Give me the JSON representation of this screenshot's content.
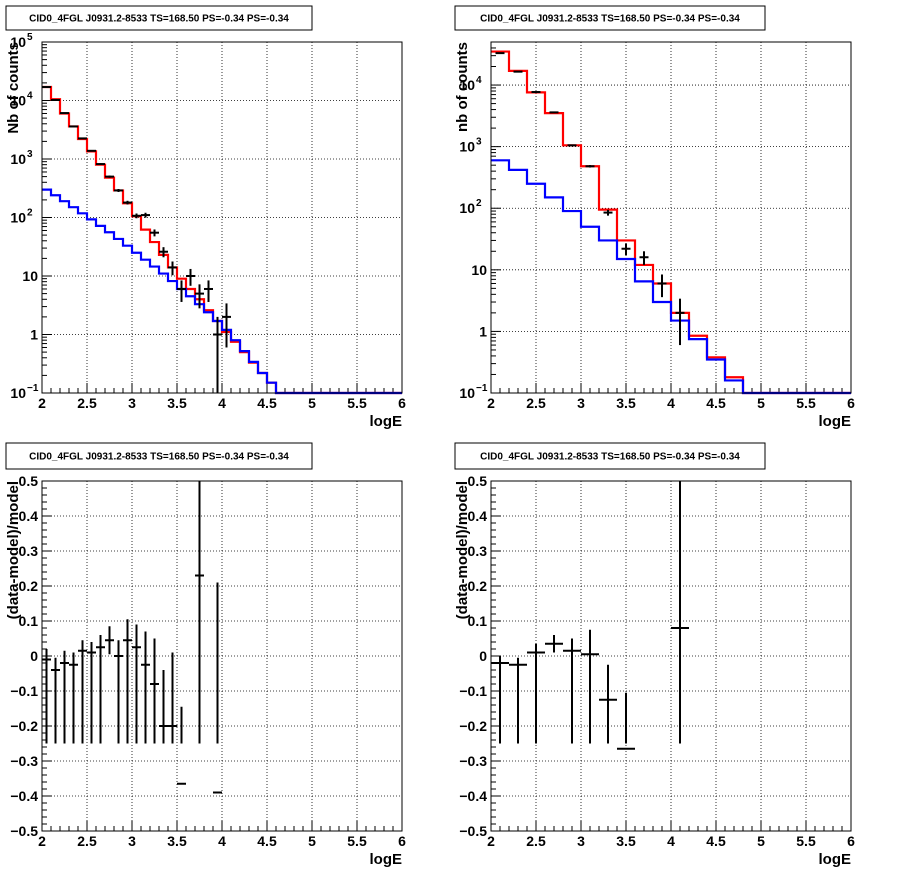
{
  "chart_data": [
    {
      "id": "p1",
      "type": "histogram",
      "title": "CID0_4FGL J0931.2-8533 TS=168.50 PS=-0.34 PS=-0.34",
      "xlabel": "logE",
      "ylabel": "Nb of counts",
      "xlim": [
        2,
        6
      ],
      "ylim": [
        0.1,
        100000
      ],
      "yscale": "log",
      "grid": true,
      "x_ticks": [
        "2",
        "2.5",
        "3",
        "3.5",
        "4",
        "4.5",
        "5",
        "5.5",
        "6"
      ],
      "y_ticks": [
        {
          "value": 0.1,
          "base": "10",
          "exp": "−1"
        },
        {
          "value": 1,
          "label": "1"
        },
        {
          "value": 10,
          "label": "10"
        },
        {
          "value": 100,
          "base": "10",
          "exp": "2"
        },
        {
          "value": 1000,
          "base": "10",
          "exp": "3"
        },
        {
          "value": 10000,
          "base": "10",
          "exp": "4"
        },
        {
          "value": 100000,
          "base": "10",
          "exp": "5"
        }
      ],
      "bin_edges": [
        2.0,
        2.1,
        2.2,
        2.3,
        2.4,
        2.5,
        2.6,
        2.7,
        2.8,
        2.9,
        3.0,
        3.1,
        3.2,
        3.3,
        3.4,
        3.5,
        3.6,
        3.7,
        3.8,
        3.9,
        4.0,
        4.1,
        4.2,
        4.3,
        4.4,
        4.5,
        4.6,
        4.7,
        4.8,
        4.9,
        5.0,
        5.1,
        5.2,
        5.3,
        5.4,
        5.5,
        5.6,
        5.7,
        5.8,
        5.9,
        6.0
      ],
      "series": [
        {
          "color": "#ff0000",
          "values": [
            17000,
            10500,
            6000,
            3600,
            2200,
            1350,
            800,
            480,
            290,
            175,
            105,
            62,
            38,
            23,
            14,
            9,
            6,
            4,
            2.6,
            1.7,
            1.1,
            0.75,
            0.5,
            0.33,
            0.22,
            0.15,
            0.1,
            0.1,
            0.1,
            0.1,
            0.1,
            0.1,
            0.1,
            0.1,
            0.1,
            0.1,
            0.1,
            0.1,
            0.1,
            0.1
          ]
        },
        {
          "color": "#0000ff",
          "values": [
            300,
            240,
            190,
            150,
            118,
            93,
            72,
            56,
            43,
            33,
            25,
            19,
            14.5,
            11,
            8.2,
            6,
            4.5,
            3.3,
            2.4,
            1.7,
            1.2,
            0.8,
            0.52,
            0.34,
            0.22,
            0.15,
            0.1,
            0.1,
            0.1,
            0.1,
            0.1,
            0.1,
            0.1,
            0.1,
            0.1,
            0.1,
            0.1,
            0.1,
            0.1,
            0.1
          ]
        }
      ],
      "points": [
        {
          "x": 2.05,
          "y": 17000,
          "err": 130
        },
        {
          "x": 2.15,
          "y": 10200,
          "err": 100
        },
        {
          "x": 2.25,
          "y": 6100,
          "err": 78
        },
        {
          "x": 2.35,
          "y": 3600,
          "err": 60
        },
        {
          "x": 2.45,
          "y": 2250,
          "err": 47
        },
        {
          "x": 2.55,
          "y": 1380,
          "err": 37
        },
        {
          "x": 2.65,
          "y": 820,
          "err": 29
        },
        {
          "x": 2.75,
          "y": 500,
          "err": 22
        },
        {
          "x": 2.85,
          "y": 290,
          "err": 17
        },
        {
          "x": 2.95,
          "y": 180,
          "err": 13
        },
        {
          "x": 3.05,
          "y": 107,
          "err": 10
        },
        {
          "x": 3.15,
          "y": 110,
          "err": 10.5
        },
        {
          "x": 3.25,
          "y": 55,
          "err": 7.4
        },
        {
          "x": 3.35,
          "y": 26,
          "err": 5.1
        },
        {
          "x": 3.45,
          "y": 14,
          "err": 3.7
        },
        {
          "x": 3.55,
          "y": 6,
          "err": 2.4
        },
        {
          "x": 3.65,
          "y": 10,
          "err": 3.2
        },
        {
          "x": 3.75,
          "y": 5,
          "err": 2.2
        },
        {
          "x": 3.85,
          "y": 6,
          "err": 2.4
        },
        {
          "x": 3.95,
          "y": 1,
          "err": 1
        },
        {
          "x": 4.05,
          "y": 2,
          "err": 1.4
        }
      ]
    },
    {
      "id": "p2",
      "type": "histogram",
      "title": "CID0_4FGL J0931.2-8533 TS=168.50 PS=-0.34 PS=-0.34",
      "xlabel": "logE",
      "ylabel": "nb of counts",
      "xlim": [
        2,
        6
      ],
      "ylim": [
        0.1,
        50000
      ],
      "yscale": "log",
      "grid": true,
      "x_ticks": [
        "2",
        "2.5",
        "3",
        "3.5",
        "4",
        "4.5",
        "5",
        "5.5",
        "6"
      ],
      "y_ticks": [
        {
          "value": 0.1,
          "base": "10",
          "exp": "−1"
        },
        {
          "value": 1,
          "label": "1"
        },
        {
          "value": 10,
          "label": "10"
        },
        {
          "value": 100,
          "base": "10",
          "exp": "2"
        },
        {
          "value": 1000,
          "base": "10",
          "exp": "3"
        },
        {
          "value": 10000,
          "base": "10",
          "exp": "4"
        }
      ],
      "bin_edges": [
        2.0,
        2.2,
        2.4,
        2.6,
        2.8,
        3.0,
        3.2,
        3.4,
        3.6,
        3.8,
        4.0,
        4.2,
        4.4,
        4.6,
        4.8,
        5.0,
        5.2,
        5.4,
        5.6,
        5.8,
        6.0
      ],
      "series": [
        {
          "color": "#ff0000",
          "values": [
            35000,
            17000,
            7600,
            3500,
            1050,
            480,
            95,
            30,
            12,
            6,
            2,
            0.85,
            0.38,
            0.18,
            0.1,
            0.1,
            0.1,
            0.1,
            0.1,
            0.1
          ]
        },
        {
          "color": "#0000ff",
          "values": [
            600,
            420,
            250,
            150,
            90,
            50,
            30,
            15,
            6.5,
            3,
            1.5,
            0.75,
            0.35,
            0.16,
            0.1,
            0.1,
            0.1,
            0.1,
            0.1,
            0.1
          ]
        }
      ],
      "points": [
        {
          "x": 2.1,
          "y": 33000,
          "err": 180
        },
        {
          "x": 2.3,
          "y": 16500,
          "err": 130
        },
        {
          "x": 2.5,
          "y": 7700,
          "err": 88
        },
        {
          "x": 2.7,
          "y": 3600,
          "err": 60
        },
        {
          "x": 2.9,
          "y": 1050,
          "err": 32
        },
        {
          "x": 3.1,
          "y": 480,
          "err": 22
        },
        {
          "x": 3.3,
          "y": 85,
          "err": 9.2
        },
        {
          "x": 3.5,
          "y": 22,
          "err": 4.7
        },
        {
          "x": 3.7,
          "y": 16,
          "err": 4
        },
        {
          "x": 3.9,
          "y": 6,
          "err": 2.4
        },
        {
          "x": 4.1,
          "y": 2,
          "err": 1.4
        }
      ]
    },
    {
      "id": "p3",
      "type": "scatter",
      "title": "CID0_4FGL J0931.2-8533 TS=168.50 PS=-0.34 PS=-0.34",
      "xlabel": "logE",
      "ylabel": "(data-model)/model",
      "xlim": [
        2,
        6
      ],
      "ylim": [
        -0.5,
        0.5
      ],
      "grid": true,
      "x_ticks": [
        "2",
        "2.5",
        "3",
        "3.5",
        "4",
        "4.5",
        "5",
        "5.5",
        "6"
      ],
      "y_ticks": [
        "−0.5",
        "−0.4",
        "−0.3",
        "−0.2",
        "−0.1",
        "0",
        "0.1",
        "0.2",
        "0.3",
        "0.4",
        "0.5"
      ],
      "y_tick_values": [
        -0.5,
        -0.4,
        -0.3,
        -0.2,
        -0.1,
        0,
        0.1,
        0.2,
        0.3,
        0.4,
        0.5
      ],
      "points": [
        {
          "x": 2.05,
          "y": -0.01,
          "ex": 0.05,
          "err": 0.03
        },
        {
          "x": 2.15,
          "y": -0.04,
          "ex": 0.05,
          "err": 0.035
        },
        {
          "x": 2.25,
          "y": -0.02,
          "ex": 0.05,
          "err": 0.035
        },
        {
          "x": 2.35,
          "y": -0.025,
          "ex": 0.05,
          "err": 0.035
        },
        {
          "x": 2.45,
          "y": 0.015,
          "ex": 0.05,
          "err": 0.03
        },
        {
          "x": 2.55,
          "y": 0.01,
          "ex": 0.05,
          "err": 0.03
        },
        {
          "x": 2.65,
          "y": 0.025,
          "ex": 0.05,
          "err": 0.035
        },
        {
          "x": 2.75,
          "y": 0.045,
          "ex": 0.05,
          "err": 0.04
        },
        {
          "x": 2.85,
          "y": 0.0,
          "ex": 0.05,
          "err": 0.045
        },
        {
          "x": 2.95,
          "y": 0.045,
          "ex": 0.05,
          "err": 0.06
        },
        {
          "x": 3.05,
          "y": 0.025,
          "ex": 0.05,
          "err": 0.065
        },
        {
          "x": 3.15,
          "y": -0.025,
          "ex": 0.05,
          "err": 0.095
        },
        {
          "x": 3.25,
          "y": -0.08,
          "ex": 0.05,
          "err": 0.13
        },
        {
          "x": 3.35,
          "y": -0.2,
          "ex": 0.05,
          "err": 0.16
        },
        {
          "x": 3.45,
          "y": -0.2,
          "ex": 0.05,
          "err": 0.21
        },
        {
          "x": 3.55,
          "y": -0.365,
          "ex": 0.05,
          "err": 0.22
        },
        {
          "x": 3.75,
          "y": 0.23,
          "ex": 0.05,
          "err": 0.55
        },
        {
          "x": 3.95,
          "y": -0.39,
          "ex": 0.05,
          "err": 0.6
        }
      ]
    },
    {
      "id": "p4",
      "type": "scatter",
      "title": "CID0_4FGL J0931.2-8533 TS=168.50 PS=-0.34 PS=-0.34",
      "xlabel": "logE",
      "ylabel": "(data-model)/model",
      "xlim": [
        2,
        6
      ],
      "ylim": [
        -0.5,
        0.5
      ],
      "grid": true,
      "x_ticks": [
        "2",
        "2.5",
        "3",
        "3.5",
        "4",
        "4.5",
        "5",
        "5.5",
        "6"
      ],
      "y_ticks": [
        "−0.5",
        "−0.4",
        "−0.3",
        "−0.2",
        "−0.1",
        "0",
        "0.1",
        "0.2",
        "0.3",
        "0.4",
        "0.5"
      ],
      "y_tick_values": [
        -0.5,
        -0.4,
        -0.3,
        -0.2,
        -0.1,
        0,
        0.1,
        0.2,
        0.3,
        0.4,
        0.5
      ],
      "points": [
        {
          "x": 2.1,
          "y": -0.02,
          "ex": 0.1,
          "err": 0.02
        },
        {
          "x": 2.3,
          "y": -0.025,
          "ex": 0.1,
          "err": 0.02
        },
        {
          "x": 2.5,
          "y": 0.01,
          "ex": 0.1,
          "err": 0.025
        },
        {
          "x": 2.7,
          "y": 0.035,
          "ex": 0.1,
          "err": 0.025
        },
        {
          "x": 2.9,
          "y": 0.015,
          "ex": 0.1,
          "err": 0.035
        },
        {
          "x": 3.1,
          "y": 0.005,
          "ex": 0.1,
          "err": 0.07
        },
        {
          "x": 3.3,
          "y": -0.125,
          "ex": 0.1,
          "err": 0.1
        },
        {
          "x": 3.5,
          "y": -0.265,
          "ex": 0.1,
          "err": 0.16
        },
        {
          "x": 4.1,
          "y": 0.08,
          "ex": 0.1,
          "err": 0.8
        }
      ]
    }
  ]
}
